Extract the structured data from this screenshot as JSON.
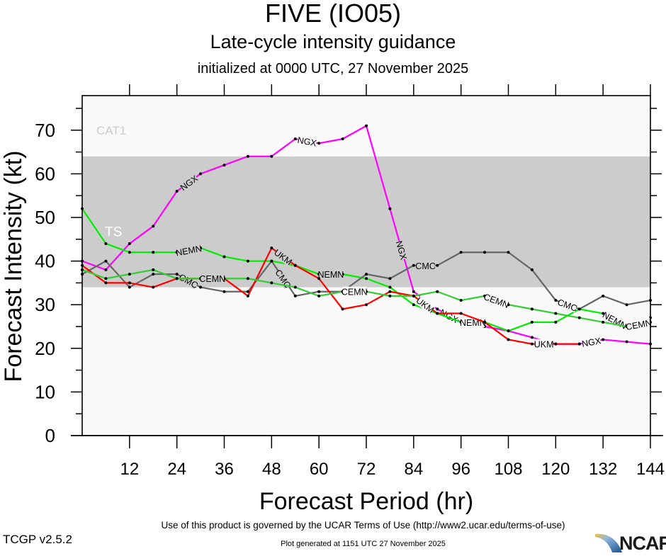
{
  "header": {
    "title": "FIVE (IO05)",
    "subtitle": "Late-cycle intensity guidance",
    "init": "initialized at 0000 UTC, 27 November 2025"
  },
  "footer": {
    "terms": "Use of this product is governed by the UCAR Terms of Use (http://www2.ucar.edu/terms-of-use)",
    "version": "TCGP v2.5.2",
    "generated": "Plot generated at 1151 UTC   27 November 2025",
    "logo_text": "NCAR"
  },
  "chart_data": {
    "type": "line",
    "title": "FIVE (IO05)",
    "subtitle": "Late-cycle intensity guidance",
    "xlabel": "Forecast Period (hr)",
    "ylabel": "Forecast Intensity (kt)",
    "xlim": [
      0,
      144
    ],
    "ylim": [
      0,
      78
    ],
    "xticks": [
      12,
      24,
      36,
      48,
      60,
      72,
      84,
      96,
      108,
      120,
      132,
      144
    ],
    "yticks": [
      0,
      10,
      20,
      30,
      40,
      50,
      60,
      70
    ],
    "bands": [
      {
        "name": "TS",
        "from": 34,
        "to": 64,
        "color": "#cccccc",
        "label_color": "#ffffff"
      },
      {
        "name": "CAT1",
        "from": 64,
        "to": 83,
        "color": "#f9f9f9",
        "label_color": "#cccccc"
      }
    ],
    "below_band_color": "#f9f9f9",
    "x": [
      0,
      6,
      12,
      18,
      24,
      30,
      36,
      42,
      48,
      54,
      60,
      66,
      72,
      78,
      84,
      90,
      96,
      102,
      108,
      114,
      120,
      126,
      132,
      138,
      144
    ],
    "series": [
      {
        "name": "NGX",
        "color": "#ff00ff",
        "label_at": [
          4,
          9,
          13,
          15,
          21
        ],
        "values": [
          40,
          38,
          44,
          48,
          56,
          60,
          62,
          64,
          64,
          68,
          67,
          68,
          71,
          52,
          33,
          29,
          26,
          25,
          24,
          22.5,
          21,
          21,
          22,
          21.5,
          21
        ]
      },
      {
        "name": "NEMN",
        "color": "#00ee00",
        "label_at": [
          4,
          10,
          16,
          22
        ],
        "values": [
          52,
          44,
          42,
          42,
          42,
          43,
          41,
          40,
          40,
          39,
          37,
          37,
          36,
          34,
          30,
          28,
          26,
          26,
          24,
          26,
          26,
          29,
          28,
          25,
          27
        ]
      },
      {
        "name": "CMC",
        "color": "#666666",
        "label_at": [
          4,
          8,
          14,
          20
        ],
        "values": [
          37,
          40,
          34,
          37,
          37,
          34,
          33,
          33,
          40,
          32,
          33,
          33,
          37,
          36,
          39,
          39,
          42,
          42,
          42,
          38,
          31,
          29,
          32,
          30,
          31
        ]
      },
      {
        "name": "UKM",
        "color": "#ff0000",
        "label_at": [
          5,
          8,
          14,
          19
        ],
        "values": [
          39,
          35,
          35,
          34,
          36,
          36,
          36,
          32,
          43,
          39,
          36,
          29,
          30,
          33,
          32,
          28,
          28,
          26,
          22,
          21,
          21,
          21,
          null,
          null,
          null
        ]
      },
      {
        "name": "CEMN",
        "color": "#33cc33",
        "label_at": [
          5,
          11,
          17,
          23
        ],
        "values": [
          38,
          36,
          37,
          38,
          36,
          36,
          36,
          36,
          35,
          34,
          32,
          33,
          33,
          32,
          32,
          33,
          31,
          32,
          30,
          29,
          28,
          27,
          26,
          25,
          26
        ]
      }
    ]
  }
}
